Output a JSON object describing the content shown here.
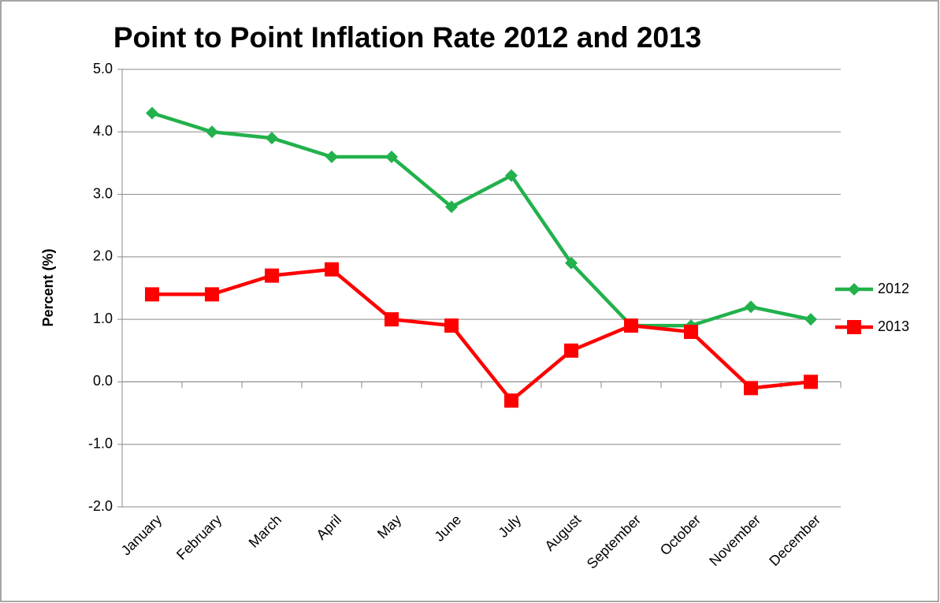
{
  "chart_data": {
    "type": "line",
    "title": "Point to Point Inflation Rate 2012 and 2013",
    "y_label": "Percent (%)",
    "categories": [
      "January",
      "February",
      "March",
      "April",
      "May",
      "June",
      "July",
      "August",
      "September",
      "October",
      "November",
      "December"
    ],
    "series": [
      {
        "name": "2012",
        "color": "#22b14c",
        "marker": "diamond",
        "values": [
          4.3,
          4.0,
          3.9,
          3.6,
          3.6,
          2.8,
          3.3,
          1.9,
          0.9,
          0.9,
          1.2,
          1.0
        ]
      },
      {
        "name": "2013",
        "color": "#ff0000",
        "marker": "square",
        "values": [
          1.4,
          1.4,
          1.7,
          1.8,
          1.0,
          0.9,
          -0.3,
          0.5,
          0.9,
          0.8,
          -0.1,
          0.0
        ]
      }
    ],
    "ylim": [
      -2,
      5
    ],
    "yticks": [
      {
        "value": -2,
        "label": "-2.0"
      },
      {
        "value": -1,
        "label": "-1.0"
      },
      {
        "value": 0,
        "label": "0.0"
      },
      {
        "value": 1,
        "label": "1.0"
      },
      {
        "value": 2,
        "label": "2.0"
      },
      {
        "value": 3,
        "label": "3.0"
      },
      {
        "value": 4,
        "label": "4.0"
      },
      {
        "value": 5,
        "label": "5.0"
      }
    ],
    "grid": true,
    "legend": "right"
  }
}
